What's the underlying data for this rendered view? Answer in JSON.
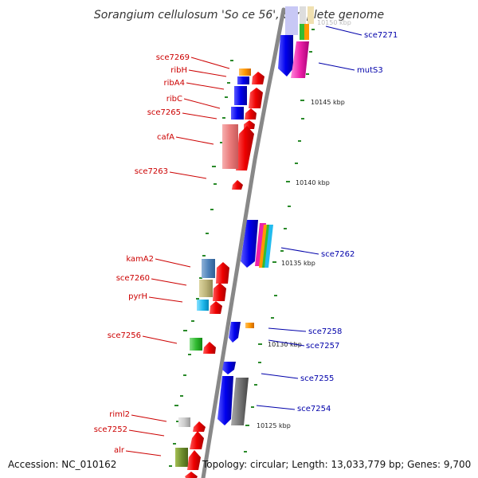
{
  "title": "Sorangium cellulosum 'So ce 56', complete genome",
  "footer": {
    "accession": "Accession: NC_010162",
    "topology": "Topology: circular; Length: 13,033,779 bp; Genes: 9,700"
  },
  "ruler_labels": [
    "10150 kbp",
    "10145 kbp",
    "10140 kbp",
    "10135 kbp",
    "10130 kbp",
    "10125 kbp"
  ],
  "gene_labels_left": [
    "sce7269",
    "ribH",
    "ribA4",
    "ribC",
    "sce7265",
    "cafA",
    "sce7263",
    "kamA2",
    "sce7260",
    "pyrH",
    "sce7256",
    "riml2",
    "sce7252",
    "alr"
  ],
  "gene_labels_right": [
    "sce7271",
    "mutS3",
    "sce7262",
    "sce7258",
    "sce7257",
    "sce7255",
    "sce7254"
  ],
  "colors": {
    "forward_strand": "#ee0000",
    "reverse_strand": "#0000ee",
    "backbone": "#888888",
    "tick": "#2a8a2a",
    "left_label": "#cc0000",
    "right_label": "#0000aa"
  }
}
